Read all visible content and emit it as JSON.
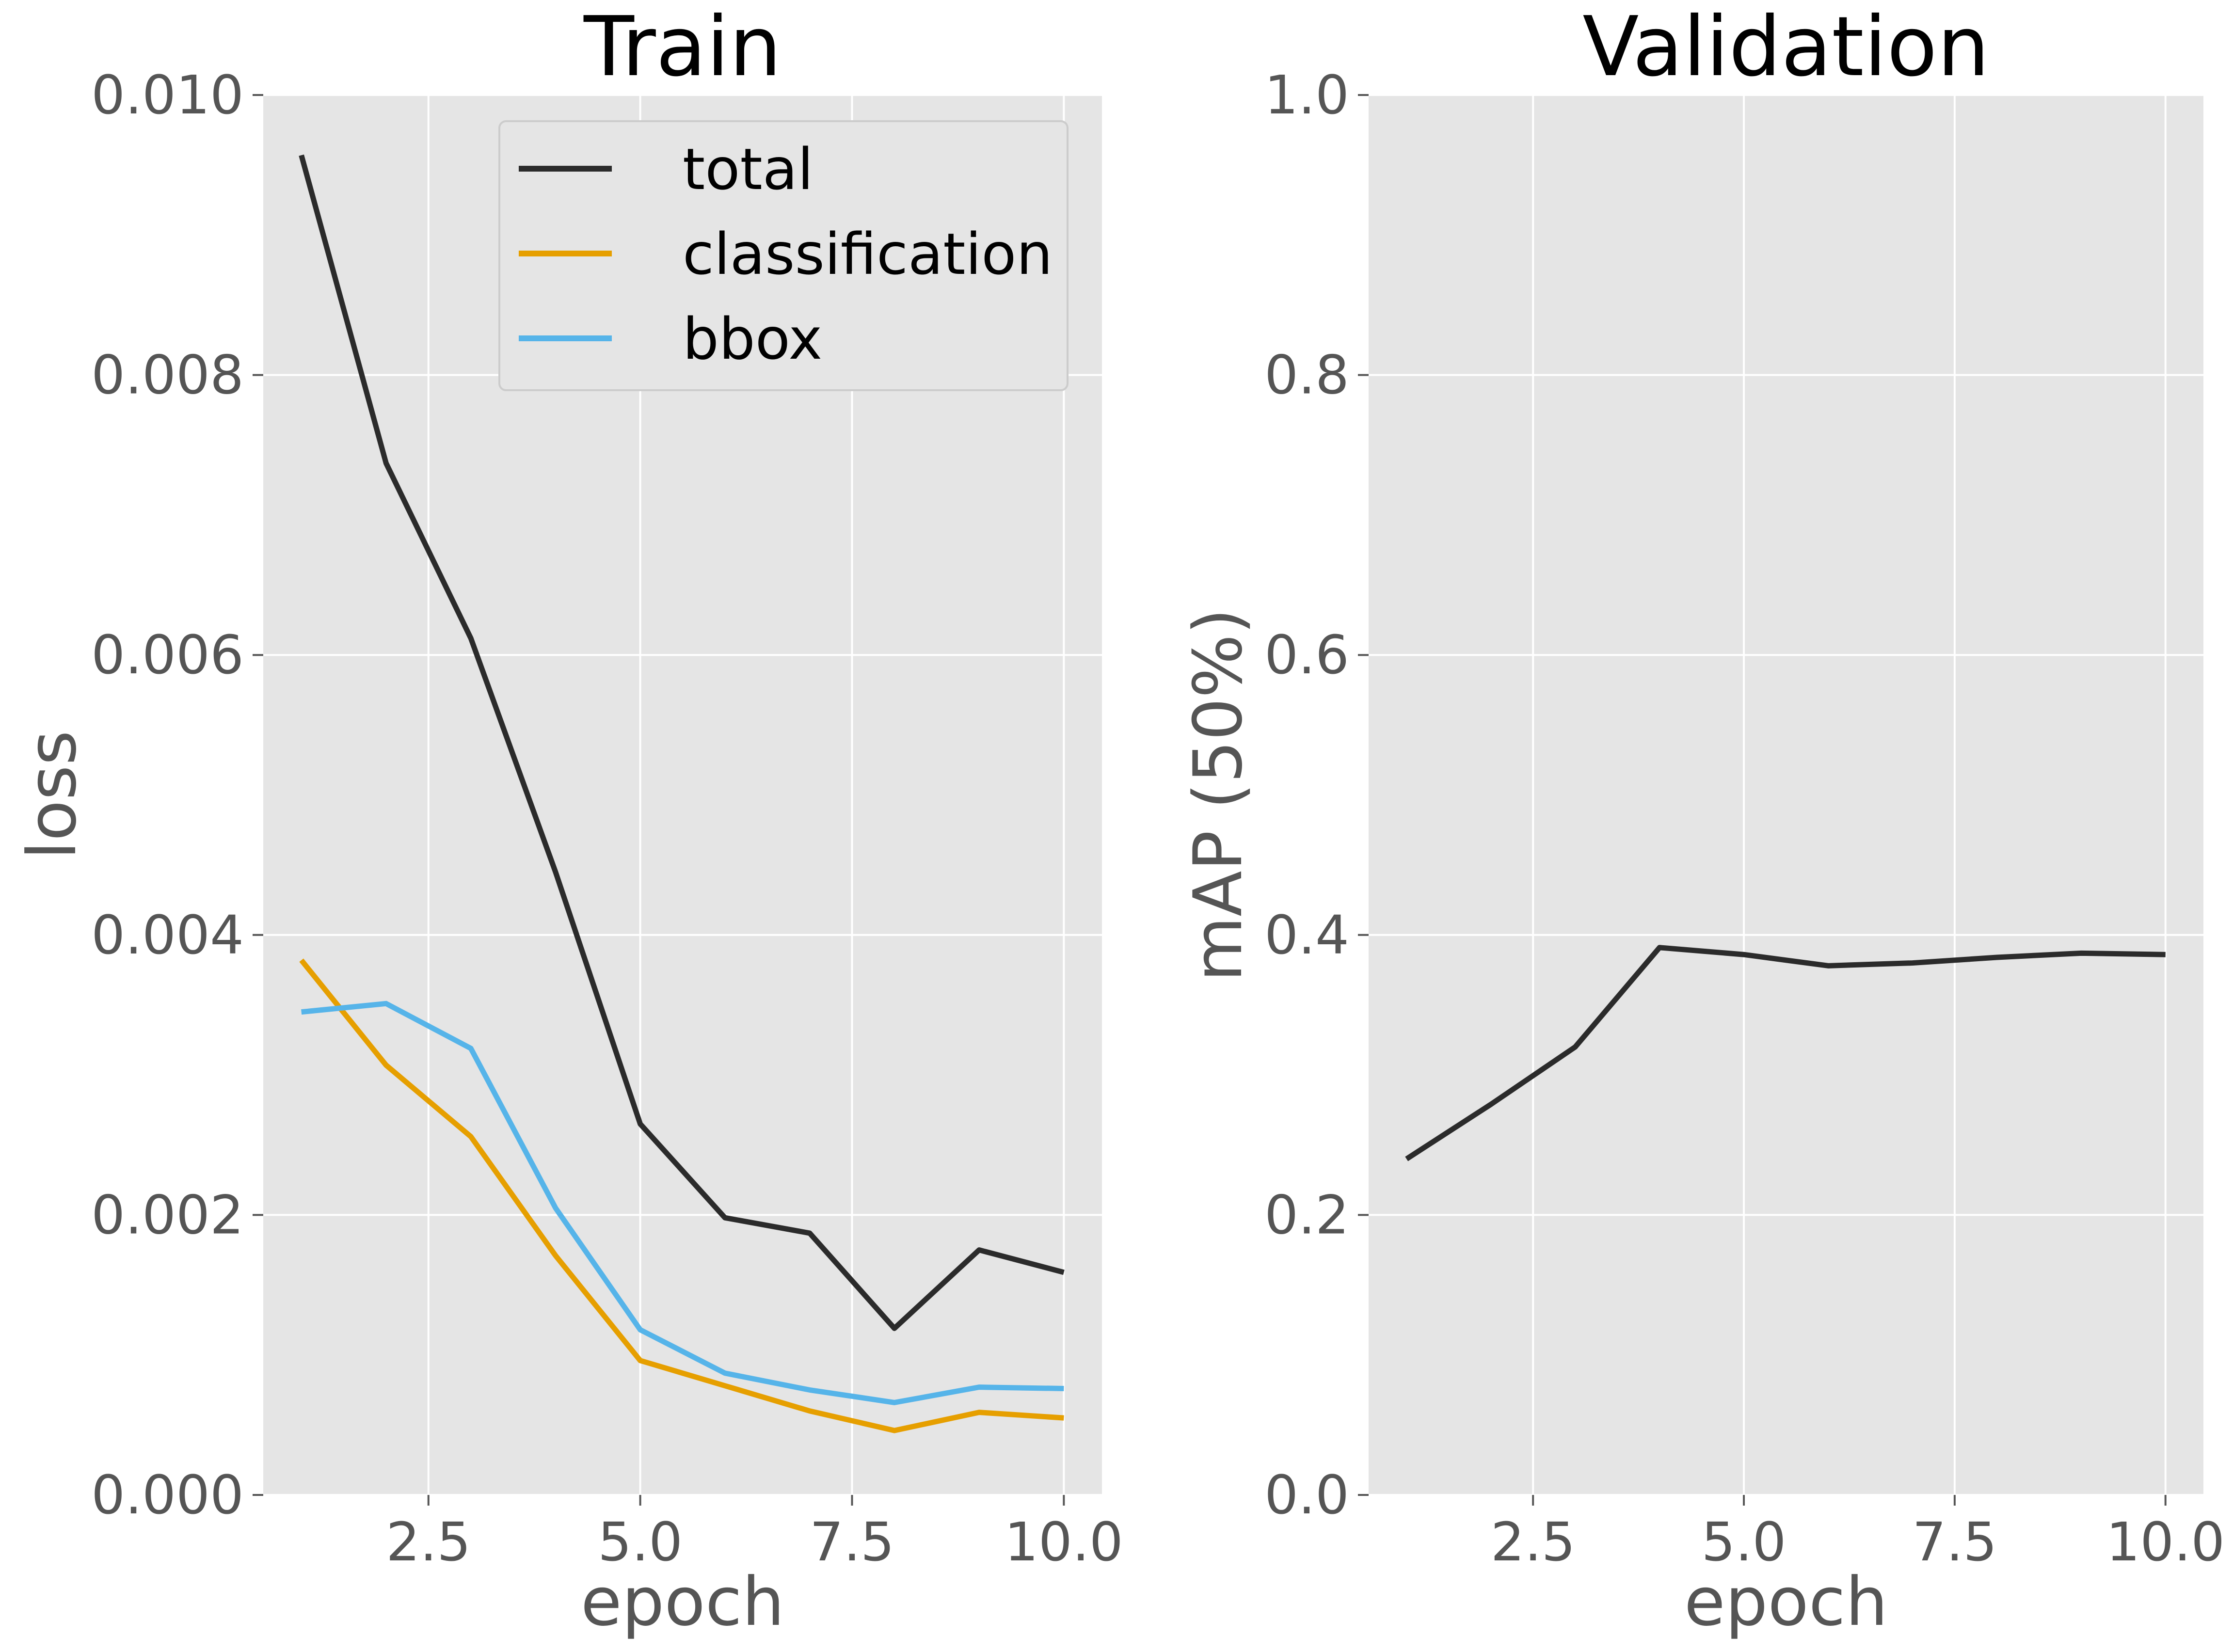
{
  "chart_data": [
    {
      "type": "line",
      "title": "Train",
      "xlabel": "epoch",
      "ylabel": "loss",
      "xlim": [
        0.55,
        10.45
      ],
      "ylim": [
        0.0,
        0.01
      ],
      "xticks": [
        2.5,
        5.0,
        7.5,
        10.0
      ],
      "xtick_labels": [
        "2.5",
        "5.0",
        "7.5",
        "10.0"
      ],
      "yticks": [
        0.0,
        0.002,
        0.004,
        0.006,
        0.008,
        0.01
      ],
      "ytick_labels": [
        "0.000",
        "0.002",
        "0.004",
        "0.006",
        "0.008",
        "0.010"
      ],
      "grid": true,
      "legend_position": "top-right",
      "x": [
        1,
        2,
        3,
        4,
        5,
        6,
        7,
        8,
        9,
        10
      ],
      "series": [
        {
          "name": "total",
          "color": "#2b2b2b",
          "values": [
            0.00957,
            0.00737,
            0.00612,
            0.00445,
            0.00265,
            0.00198,
            0.00187,
            0.00119,
            0.00175,
            0.00159
          ]
        },
        {
          "name": "classification",
          "color": "#e69f00",
          "values": [
            0.00382,
            0.00307,
            0.00256,
            0.00171,
            0.00096,
            0.00078,
            0.0006,
            0.00046,
            0.00059,
            0.00055
          ]
        },
        {
          "name": "bbox",
          "color": "#56b4e9",
          "values": [
            0.00345,
            0.00351,
            0.00319,
            0.00205,
            0.00118,
            0.00087,
            0.00075,
            0.00066,
            0.00077,
            0.00076
          ]
        }
      ]
    },
    {
      "type": "line",
      "title": "Validation",
      "xlabel": "epoch",
      "ylabel": "mAP (50%)",
      "xlim": [
        0.55,
        10.45
      ],
      "ylim": [
        0.0,
        1.0
      ],
      "xticks": [
        2.5,
        5.0,
        7.5,
        10.0
      ],
      "xtick_labels": [
        "2.5",
        "5.0",
        "7.5",
        "10.0"
      ],
      "yticks": [
        0.0,
        0.2,
        0.4,
        0.6,
        0.8,
        1.0
      ],
      "ytick_labels": [
        "0.0",
        "0.2",
        "0.4",
        "0.6",
        "0.8",
        "1.0"
      ],
      "grid": true,
      "legend_position": "none",
      "x": [
        1,
        2,
        3,
        4,
        5,
        6,
        7,
        8,
        9,
        10
      ],
      "series": [
        {
          "name": "mAP (50%)",
          "color": "#2b2b2b",
          "values": [
            0.24,
            0.279,
            0.32,
            0.391,
            0.386,
            0.378,
            0.38,
            0.384,
            0.387,
            0.386
          ]
        }
      ]
    }
  ]
}
